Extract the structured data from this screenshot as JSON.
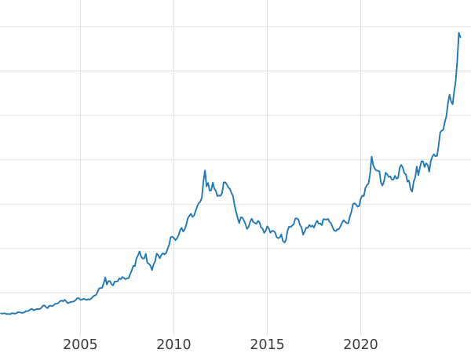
{
  "chart_data": {
    "type": "line",
    "title": "",
    "xlabel": "",
    "ylabel": "",
    "x_tick_labels": [
      "2005",
      "2010",
      "2015",
      "2020"
    ],
    "x_tick_values": [
      2005,
      2010,
      2015,
      2020
    ],
    "y_grid_values": [
      500,
      1000,
      1500,
      2000,
      2500,
      3000,
      3500
    ],
    "xlim": [
      2000.7,
      2025.9
    ],
    "ylim": [
      0,
      3800
    ],
    "grid": true,
    "legend_position": "none",
    "line_color": "#1f77b4",
    "grid_color": "#e0e0e0",
    "tick_label_color": "#3b3b3b",
    "background": "#ffffff",
    "x_start_year": 2000.75,
    "x_step_months": 1,
    "values": [
      270,
      266,
      272,
      266,
      261,
      263,
      260,
      272,
      270,
      266,
      272,
      284,
      282,
      276,
      276,
      281,
      295,
      294,
      302,
      314,
      321,
      305,
      310,
      319,
      317,
      320,
      333,
      357,
      359,
      340,
      328,
      355,
      356,
      351,
      364,
      379,
      378,
      389,
      407,
      414,
      405,
      423,
      403,
      384,
      392,
      398,
      401,
      406,
      420,
      439,
      442,
      424,
      423,
      434,
      429,
      421,
      430,
      425,
      437,
      456,
      470,
      477,
      510,
      550,
      556,
      557,
      611,
      675,
      596,
      634,
      632,
      599,
      585,
      627,
      630,
      631,
      665,
      655,
      679,
      667,
      655,
      665,
      666,
      712,
      754,
      806,
      803,
      889,
      922,
      968,
      910,
      888,
      889,
      940,
      839,
      829,
      807,
      757,
      822,
      858,
      943,
      924,
      890,
      928,
      946,
      934,
      949,
      996,
      1043,
      1127,
      1135,
      1118,
      1095,
      1113,
      1148,
      1205,
      1233,
      1193,
      1215,
      1271,
      1342,
      1370,
      1391,
      1356,
      1373,
      1424,
      1473,
      1511,
      1529,
      1573,
      1756,
      1880,
      1700,
      1739,
      1652,
      1656,
      1743,
      1674,
      1650,
      1591,
      1598,
      1595,
      1626,
      1745,
      1747,
      1722,
      1688,
      1671,
      1628,
      1593,
      1487,
      1414,
      1343,
      1286,
      1352,
      1348,
      1316,
      1276,
      1221,
      1244,
      1300,
      1336,
      1299,
      1288,
      1279,
      1311,
      1296,
      1238,
      1222,
      1176,
      1201,
      1251,
      1227,
      1178,
      1198,
      1199,
      1181,
      1128,
      1117,
      1125,
      1159,
      1086,
      1068,
      1097,
      1200,
      1246,
      1242,
      1260,
      1276,
      1337,
      1340,
      1326,
      1266,
      1238,
      1157,
      1192,
      1234,
      1231,
      1266,
      1246,
      1260,
      1236,
      1283,
      1314,
      1280,
      1282,
      1264,
      1331,
      1330,
      1325,
      1334,
      1303,
      1281,
      1238,
      1201,
      1198,
      1215,
      1220,
      1250,
      1291,
      1320,
      1301,
      1286,
      1284,
      1359,
      1413,
      1500,
      1511,
      1495,
      1471,
      1479,
      1561,
      1597,
      1591,
      1683,
      1716,
      1732,
      1843,
      2035,
      1940,
      1900,
      1880,
      1878,
      1867,
      1742,
      1710,
      1761,
      1855,
      1835,
      1807,
      1814,
      1776,
      1777,
      1820,
      1787,
      1797,
      1909,
      1942,
      1912,
      1848,
      1836,
      1753,
      1766,
      1671,
      1641,
      1753,
      1800,
      1924,
      1826,
      1912,
      1983,
      1982,
      1919,
      1960,
      1942,
      1866,
      1983,
      2036,
      2062,
      2039,
      2044,
      2160,
      2307,
      2327,
      2339,
      2426,
      2493,
      2634,
      2734,
      2657,
      2625,
      2770,
      2890,
      3120,
      3430,
      3380
    ]
  }
}
